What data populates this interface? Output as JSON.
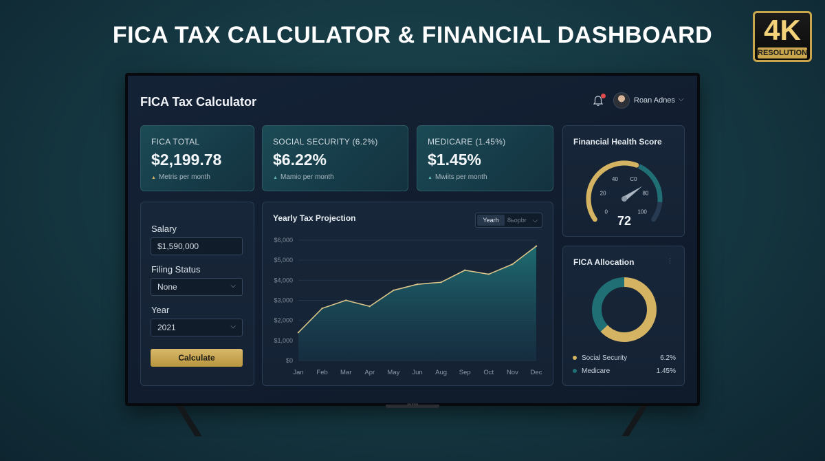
{
  "headline": "FICA TAX CALCULATOR & FINANCIAL DASHBOARD",
  "badge": {
    "big": "4K",
    "small": "RESOLUTION"
  },
  "tv_brand": "avano",
  "app": {
    "title": "FICA Tax Calculator"
  },
  "header": {
    "user_name": "Roan Adnes",
    "notification_icon": "bell-icon",
    "user_chevron": "⌵"
  },
  "colors": {
    "gold": "#d4b463",
    "teal": "#1f6f74",
    "card_bg": "#172638"
  },
  "stats": [
    {
      "label": "FICA TOTAL",
      "value": "$2,199.78",
      "sub": "Metris per month"
    },
    {
      "label": "SOCIAL SECURITY (6.2%)",
      "value": "$6.22%",
      "sub": "Mamio per month"
    },
    {
      "label": "MEDICARE (1.45%)",
      "value": "$1.45%",
      "sub": "Mwiits per month"
    }
  ],
  "form": {
    "salary_label": "Salary",
    "salary_value": "$1,590,000",
    "filing_label": "Filing Status",
    "filing_value": "None",
    "year_label": "Year",
    "year_value": "2021",
    "select_chevron": "⌵",
    "calculate_label": "Calculate"
  },
  "projection": {
    "title": "Yearly Tax Projection",
    "toggle_on": "Yearh",
    "toggle_off": "8ьopbr",
    "toggle_chevron": "⌵"
  },
  "chart_data": {
    "type": "area",
    "title": "Yearly Tax Projection",
    "categories": [
      "Jan",
      "Feb",
      "Mar",
      "Apr",
      "May",
      "Jun",
      "Aug",
      "Sep",
      "Oct",
      "Nov",
      "Dec"
    ],
    "series": [
      {
        "values": [
          1400,
          2600,
          3000,
          2700,
          3500,
          3800,
          3900,
          4500,
          4300,
          4800,
          5700
        ]
      }
    ],
    "y_ticks": [
      "$6,000",
      "$5,000",
      "$4,000",
      "$3,000",
      "$2,000",
      "$1,000",
      "$0"
    ],
    "ylim": [
      0,
      6000
    ],
    "grid": true,
    "legend": "none"
  },
  "health": {
    "title": "Financial Health Score",
    "score": "72",
    "score_value": 72,
    "ticks": [
      "0",
      "20",
      "40",
      "C0",
      "80",
      "100"
    ]
  },
  "allocation": {
    "title": "FICA Allocation",
    "menu": "⋮",
    "items": [
      {
        "label": "Social Security",
        "pct": "6.2%",
        "color": "#d4b463",
        "share": 0.63
      },
      {
        "label": "Medicare",
        "pct": "1.45%",
        "color": "#1f6f74",
        "share": 0.37
      }
    ]
  }
}
